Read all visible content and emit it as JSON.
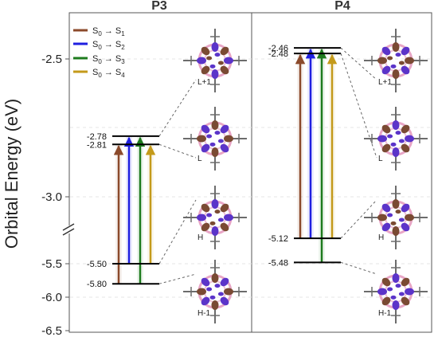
{
  "chart_data": {
    "type": "energy-level-diagram",
    "ylabel": "Orbital Energy (eV)",
    "yticks": [
      "-2.5",
      "-3.0",
      "-5.5",
      "-6.0",
      "-6.5"
    ],
    "axis_break": true,
    "legend": {
      "placement": "top-left",
      "entries": [
        {
          "label": "S0 → S1",
          "sub": "0",
          "sub2": "1",
          "color": "#8b4a2b"
        },
        {
          "label": "S0 → S2",
          "sub": "0",
          "sub2": "2",
          "color": "#1f1fe0"
        },
        {
          "label": "S0 → S3",
          "sub": "0",
          "sub2": "3",
          "color": "#1e7b1e"
        },
        {
          "label": "S0 → S4",
          "sub": "0",
          "sub2": "4",
          "color": "#c49a1a"
        }
      ]
    },
    "panels": [
      {
        "title": "P3",
        "levels": [
          {
            "orbital": "L+1",
            "energy": -2.78
          },
          {
            "orbital": "L",
            "energy": -2.81
          },
          {
            "orbital": "H",
            "energy": -5.5
          },
          {
            "orbital": "H-1",
            "energy": -5.8
          }
        ],
        "level_labels": [
          "-2.78",
          "-2.81",
          "-5.50",
          "-5.80"
        ],
        "orbital_labels": [
          "L+1",
          "L",
          "H",
          "H-1"
        ]
      },
      {
        "title": "P4",
        "levels": [
          {
            "orbital": "L+1",
            "energy": -2.46
          },
          {
            "orbital": "L",
            "energy": -2.48
          },
          {
            "orbital": "H",
            "energy": -5.12
          },
          {
            "orbital": "H-1",
            "energy": -5.48
          }
        ],
        "level_labels": [
          "-2.46",
          "-2.48",
          "-5.12",
          "-5.48"
        ],
        "orbital_labels": [
          "L+1",
          "L",
          "H",
          "H-1"
        ]
      }
    ]
  }
}
